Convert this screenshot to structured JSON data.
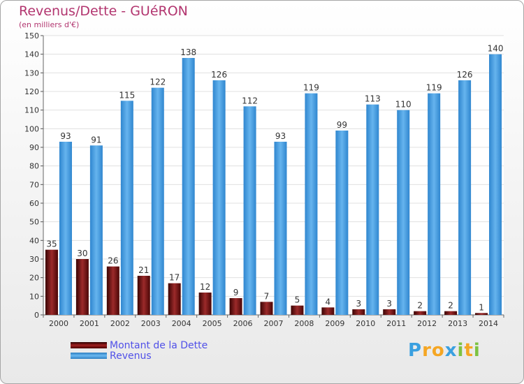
{
  "chart_data": {
    "type": "bar",
    "title": "Revenus/Dette - GUéRON",
    "subtitle": "(en milliers d'€)",
    "xlabel": "",
    "ylabel": "",
    "ylim": [
      0,
      150
    ],
    "yticks": [
      0,
      10,
      20,
      30,
      40,
      50,
      60,
      70,
      80,
      90,
      100,
      110,
      120,
      130,
      140,
      150
    ],
    "grid": true,
    "legend_position": "bottom-left",
    "categories": [
      "2000",
      "2001",
      "2002",
      "2003",
      "2004",
      "2005",
      "2006",
      "2007",
      "2008",
      "2009",
      "2010",
      "2011",
      "2012",
      "2013",
      "2014"
    ],
    "series": [
      {
        "name": "Montant de la Dette",
        "color": "#8b1a1a",
        "values": [
          35,
          30,
          26,
          21,
          17,
          12,
          9,
          7,
          5,
          4,
          3,
          3,
          2,
          2,
          1
        ]
      },
      {
        "name": "Revenus",
        "color": "#3f9be6",
        "values": [
          93,
          91,
          115,
          122,
          138,
          126,
          112,
          93,
          119,
          99,
          113,
          110,
          119,
          126,
          140
        ]
      }
    ]
  },
  "legend": {
    "debt_label": "Montant de la Dette",
    "revenue_label": "Revenus"
  },
  "brand": {
    "letters": [
      "P",
      "r",
      "o",
      "x",
      "i",
      "t",
      "i"
    ],
    "colors": [
      "#3aa0e0",
      "#f5a623",
      "#f5a623",
      "#3aa0e0",
      "#7dc242",
      "#f5a623",
      "#7dc242"
    ]
  }
}
